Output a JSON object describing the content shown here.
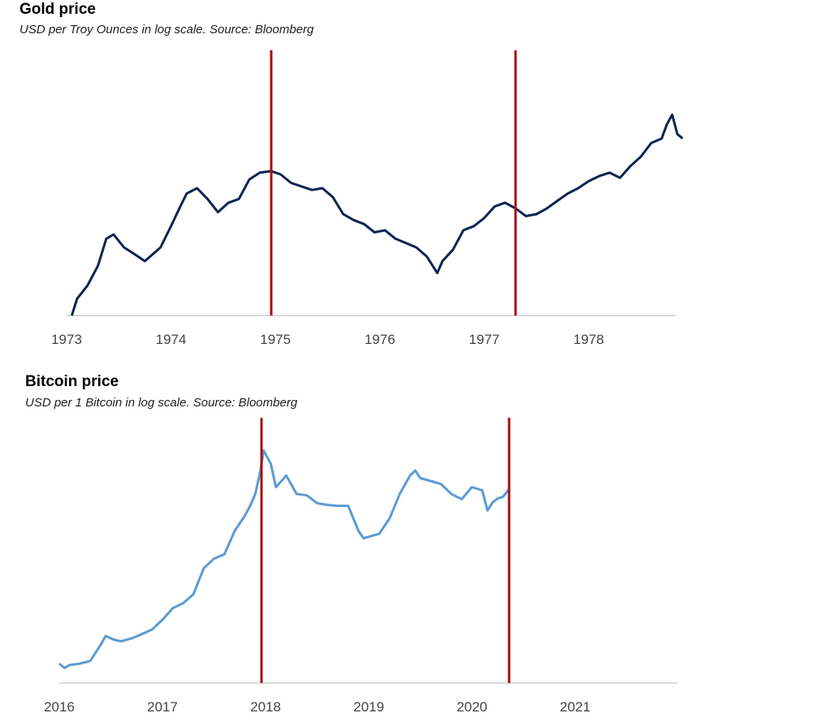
{
  "chart_data": [
    {
      "type": "line",
      "title": "Gold price",
      "subtitle": "USD per Troy Ounces in log scale. Source: Bloomberg",
      "y_scale": "log",
      "ylim": [
        90,
        250
      ],
      "xlim": [
        "1973-01-01",
        "1978-11-01"
      ],
      "x_ticks": [
        "1973",
        "1974",
        "1975",
        "1976",
        "1977",
        "1978"
      ],
      "tick_positions": [
        1973.0,
        1974.0,
        1975.0,
        1976.0,
        1977.0,
        1978.0
      ],
      "line_color": "#0d2453",
      "marker_color": "#a50f0f",
      "markers": [
        1974.96,
        1977.3
      ],
      "series": [
        {
          "x": [
            1973.05,
            1973.1,
            1973.2,
            1973.3,
            1973.38,
            1973.45,
            1973.55,
            1973.65,
            1973.75,
            1973.9,
            1974.0,
            1974.08,
            1974.15,
            1974.25,
            1974.35,
            1974.45,
            1974.55,
            1974.65,
            1974.75,
            1974.85,
            1974.96,
            1975.05,
            1975.15,
            1975.25,
            1975.35,
            1975.45,
            1975.55,
            1975.65,
            1975.75,
            1975.85,
            1975.95,
            1976.05,
            1976.15,
            1976.25,
            1976.35,
            1976.45,
            1976.55,
            1976.6,
            1976.7,
            1976.8,
            1976.9,
            1977.0,
            1977.1,
            1977.2,
            1977.3,
            1977.4,
            1977.5,
            1977.6,
            1977.7,
            1977.8,
            1977.9,
            1978.0,
            1978.1,
            1978.2,
            1978.3,
            1978.4,
            1978.5,
            1978.6,
            1978.7,
            1978.75,
            1978.8,
            1978.85,
            1978.9
          ],
          "y": [
            90,
            96,
            101,
            109,
            121,
            123,
            117,
            114,
            111,
            117,
            127,
            136,
            144,
            147,
            141,
            134,
            139,
            141,
            152,
            156,
            157,
            155,
            150,
            148,
            146,
            147,
            142,
            133,
            130,
            128,
            124,
            125,
            121,
            119,
            117,
            113,
            106,
            111,
            116,
            125,
            127,
            131,
            137,
            139,
            136,
            132,
            133,
            136,
            140,
            144,
            147,
            151,
            154,
            156,
            153,
            160,
            166,
            175,
            178,
            188,
            195,
            181,
            178
          ]
        }
      ]
    },
    {
      "type": "line",
      "title": "Bitcoin price",
      "subtitle": "USD per 1 Bitcoin in log scale. Source: Bloomberg",
      "y_scale": "log",
      "ylim": [
        300,
        30000
      ],
      "xlim": [
        "2016-01-01",
        "2021-12-31"
      ],
      "x_ticks": [
        "2016",
        "2017",
        "2018",
        "2019",
        "2020",
        "2021"
      ],
      "tick_positions": [
        2016.0,
        2017.0,
        2018.0,
        2019.0,
        2020.0,
        2021.0
      ],
      "line_color": "#5b9bd5",
      "marker_color": "#a50f0f",
      "markers": [
        2017.96,
        2020.36
      ],
      "series": [
        {
          "x": [
            2016.0,
            2016.05,
            2016.1,
            2016.2,
            2016.3,
            2016.4,
            2016.45,
            2016.5,
            2016.55,
            2016.6,
            2016.7,
            2016.8,
            2016.9,
            2017.0,
            2017.1,
            2017.2,
            2017.3,
            2017.4,
            2017.5,
            2017.6,
            2017.7,
            2017.8,
            2017.85,
            2017.9,
            2017.95,
            2017.98,
            2018.05,
            2018.1,
            2018.2,
            2018.3,
            2018.4,
            2018.5,
            2018.6,
            2018.7,
            2018.8,
            2018.9,
            2018.95,
            2019.0,
            2019.1,
            2019.2,
            2019.3,
            2019.4,
            2019.45,
            2019.5,
            2019.6,
            2019.7,
            2019.8,
            2019.9,
            2020.0,
            2020.1,
            2020.15,
            2020.2,
            2020.25,
            2020.3,
            2020.36
          ],
          "y": [
            420,
            390,
            410,
            420,
            440,
            580,
            680,
            650,
            630,
            620,
            650,
            700,
            760,
            900,
            1100,
            1200,
            1400,
            2200,
            2600,
            2800,
            4200,
            5500,
            6500,
            8000,
            12000,
            17000,
            13500,
            9000,
            11000,
            8000,
            7800,
            6800,
            6600,
            6500,
            6500,
            4200,
            3700,
            3800,
            4000,
            5200,
            8000,
            11000,
            12000,
            10500,
            10000,
            9500,
            8000,
            7300,
            9000,
            8500,
            6000,
            6900,
            7400,
            7600,
            8700
          ]
        }
      ]
    }
  ]
}
